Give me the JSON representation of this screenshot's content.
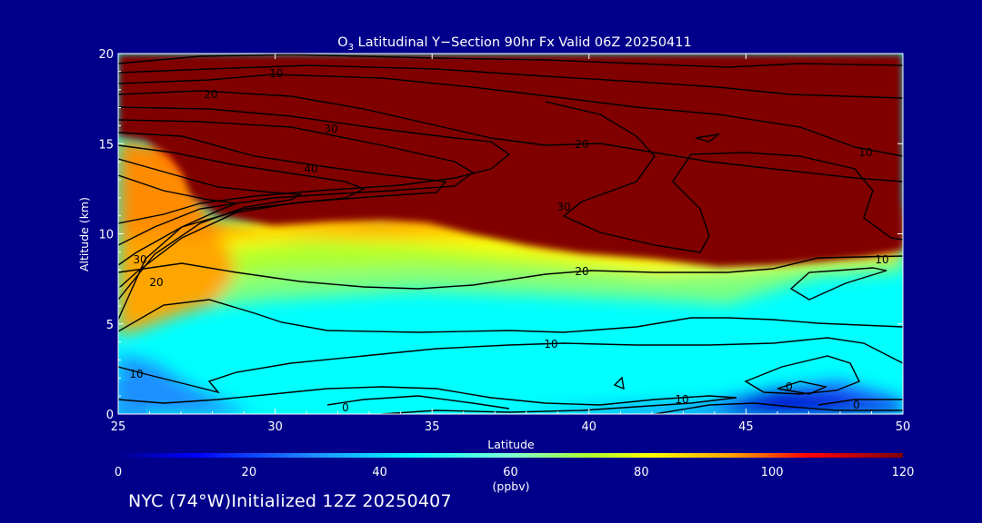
{
  "chart_data": {
    "type": "heatmap",
    "title_main": "O",
    "title_sub": "3",
    "title_rest": " Latitudinal Y−Section 90hr  Fx Valid 06Z 20250411",
    "xlabel": "Latitude",
    "ylabel": "Altitude (km)",
    "xlim": [
      25,
      50
    ],
    "ylim": [
      0,
      20
    ],
    "x_ticks": [
      "25",
      "30",
      "35",
      "40",
      "45",
      "50"
    ],
    "y_ticks": [
      "0",
      "5",
      "10",
      "15",
      "20"
    ],
    "colorbar": {
      "ticks": [
        "0",
        "20",
        "40",
        "60",
        "80",
        "100",
        "120"
      ],
      "range": [
        0,
        120
      ],
      "units": "(ppbv)"
    },
    "contour_labels": [
      "10",
      "20",
      "30",
      "40",
      "20",
      "30",
      "20",
      "10",
      "30",
      "20",
      "10",
      "10",
      "0",
      "10",
      "0",
      "0",
      "10"
    ],
    "footer": "NYC (74°W)Initialized 12Z 20250407",
    "colors": {
      "background": "#00008b",
      "high": "#800000",
      "text": "#ffffff"
    }
  }
}
